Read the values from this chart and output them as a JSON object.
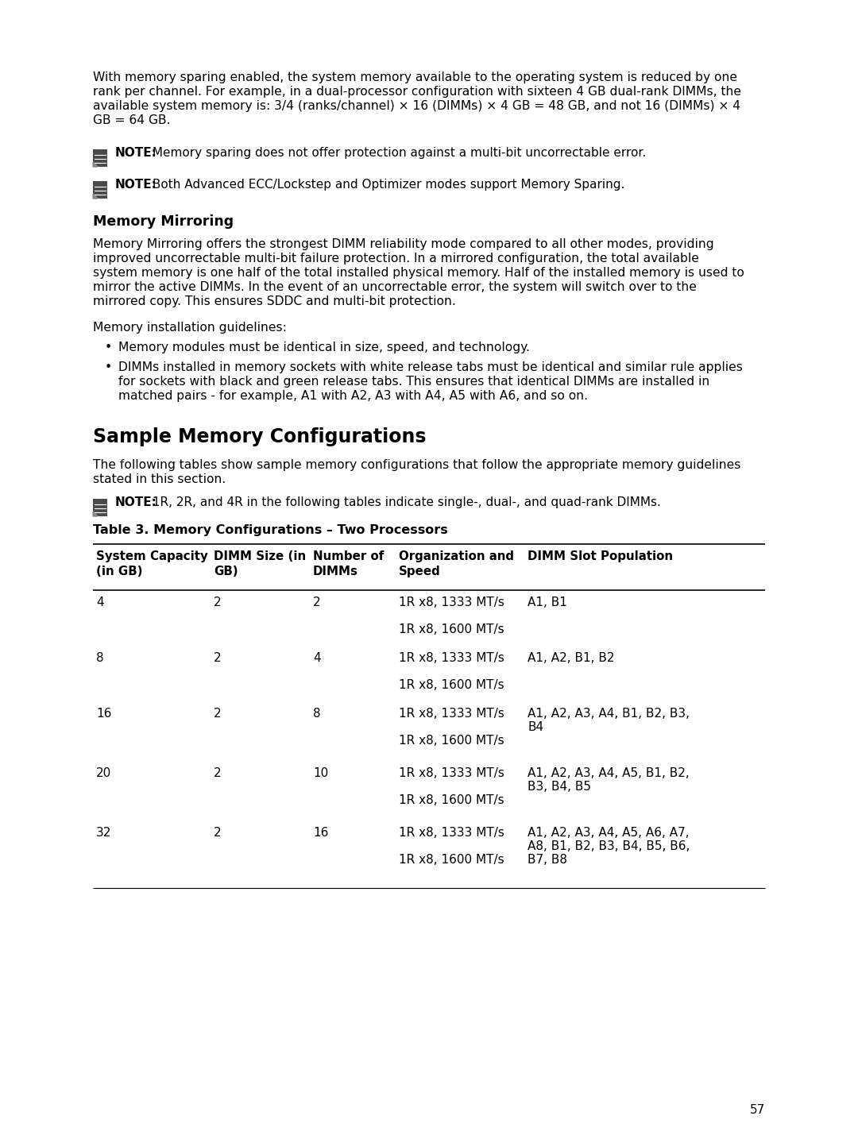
{
  "bg_color": "#ffffff",
  "text_color": "#000000",
  "page_number": "57",
  "top_paragraph": "With memory sparing enabled, the system memory available to the operating system is reduced by one rank per channel. For example, in a dual-processor configuration with sixteen 4 GB dual-rank DIMMs, the available system memory is: 3/4 (ranks/channel) × 16 (DIMMs) × 4 GB = 48 GB, and not 16 (DIMMs) × 4 GB = 64 GB.",
  "note1_bold": "NOTE:",
  "note1_rest": " Memory sparing does not offer protection against a multi-bit uncorrectable error.",
  "note2_bold": "NOTE:",
  "note2_rest": " Both Advanced ECC/Lockstep and Optimizer modes support Memory Sparing.",
  "section1_heading": "Memory Mirroring",
  "mirroring_para": "Memory Mirroring offers the strongest DIMM reliability mode compared to all other modes, providing improved uncorrectable multi-bit failure protection. In a mirrored configuration, the total available system memory is one half of the total installed physical memory. Half of the installed memory is used to mirror the active DIMMs. In the event of an uncorrectable error, the system will switch over to the mirrored copy. This ensures SDDC and multi-bit protection.",
  "guidelines_intro": "Memory installation guidelines:",
  "bullet1": "Memory modules must be identical in size, speed, and technology.",
  "bullet2": "DIMMs installed in memory sockets with white release tabs must be identical and similar rule applies for sockets with black and green release tabs. This ensures that identical DIMMs are installed in matched pairs - for example, A1 with A2, A3 with A4, A5 with A6, and so on.",
  "section2_heading": "Sample Memory Configurations",
  "section2_para": "The following tables show sample memory configurations that follow the appropriate memory guidelines stated in this section.",
  "note3_bold": "NOTE:",
  "note3_rest": " 1R, 2R, and 4R in the following tables indicate single-, dual-, and quad-rank DIMMs.",
  "table_title": "Table 3. Memory Configurations – Two Processors",
  "col_headers": [
    "System Capacity\n(in GB)",
    "DIMM Size (in\nGB)",
    "Number of\nDIMMs",
    "Organization and\nSpeed",
    "DIMM Slot Population"
  ],
  "table_rows": [
    {
      "sys": "4",
      "dimm": "2",
      "num": "2",
      "org1": "1R x8, 1333 MT/s",
      "org2": "1R x8, 1600 MT/s",
      "slot1": "A1, B1",
      "slot2": "",
      "slot3": ""
    },
    {
      "sys": "8",
      "dimm": "2",
      "num": "4",
      "org1": "1R x8, 1333 MT/s",
      "org2": "1R x8, 1600 MT/s",
      "slot1": "A1, A2, B1, B2",
      "slot2": "",
      "slot3": ""
    },
    {
      "sys": "16",
      "dimm": "2",
      "num": "8",
      "org1": "1R x8, 1333 MT/s",
      "org2": "1R x8, 1600 MT/s",
      "slot1": "A1, A2, A3, A4, B1, B2, B3,",
      "slot2": "B4",
      "slot3": ""
    },
    {
      "sys": "20",
      "dimm": "2",
      "num": "10",
      "org1": "1R x8, 1333 MT/s",
      "org2": "1R x8, 1600 MT/s",
      "slot1": "A1, A2, A3, A4, A5, B1, B2,",
      "slot2": "B3, B4, B5",
      "slot3": ""
    },
    {
      "sys": "32",
      "dimm": "2",
      "num": "16",
      "org1": "1R x8, 1333 MT/s",
      "org2": "1R x8, 1600 MT/s",
      "slot1": "A1, A2, A3, A4, A5, A6, A7,",
      "slot2": "A8, B1, B2, B3, B4, B5, B6,",
      "slot3": "B7, B8"
    }
  ]
}
